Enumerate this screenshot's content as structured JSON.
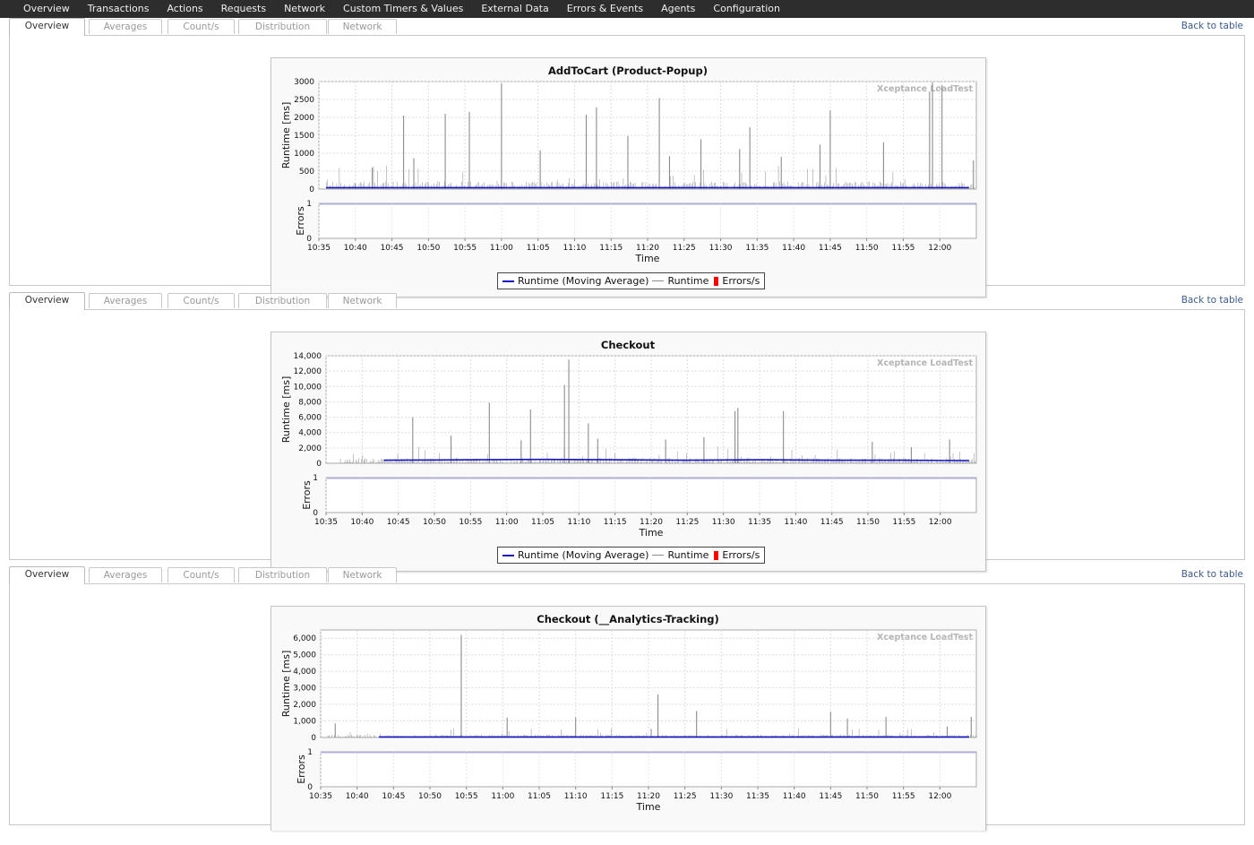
{
  "topnav": {
    "items": [
      "Overview",
      "Transactions",
      "Actions",
      "Requests",
      "Network",
      "Custom Timers & Values",
      "External Data",
      "Errors & Events",
      "Agents",
      "Configuration"
    ]
  },
  "tabs": [
    "Overview",
    "Averages",
    "Count/s",
    "Distribution",
    "Network"
  ],
  "back_link": "Back to table",
  "watermark": "Xceptance LoadTest",
  "colors": {
    "moving_average": "#1515c8",
    "runtime": "#8c8c8c",
    "errors": "#ff0000",
    "nav_background": "#2d2d2d",
    "link": "#3a5a8c"
  },
  "legend": {
    "moving_average": "Runtime (Moving Average)",
    "runtime": "Runtime",
    "errors": "Errors/s"
  },
  "charts": [
    {
      "title": "AddToCart (Product-Popup)",
      "ylabel": "Runtime [ms]",
      "ylabel2": "Errors",
      "xlabel": "Time",
      "yticks": [
        "0",
        "500",
        "1000",
        "1500",
        "2000",
        "2500",
        "3000"
      ],
      "errors_ticks": [
        "0",
        "1"
      ],
      "xticks": [
        "10:35",
        "10:40",
        "10:45",
        "10:50",
        "10:55",
        "11:00",
        "11:05",
        "11:10",
        "11:15",
        "11:20",
        "11:25",
        "11:30",
        "11:35",
        "11:40",
        "11:45",
        "11:50",
        "11:55",
        "12:00"
      ]
    },
    {
      "title": "Checkout",
      "ylabel": "Runtime [ms]",
      "ylabel2": "Errors",
      "xlabel": "Time",
      "yticks": [
        "0",
        "2,000",
        "4,000",
        "6,000",
        "8,000",
        "10,000",
        "12,000",
        "14,000"
      ],
      "errors_ticks": [
        "0",
        "1"
      ],
      "xticks": [
        "10:35",
        "10:40",
        "10:45",
        "10:50",
        "10:55",
        "11:00",
        "11:05",
        "11:10",
        "11:15",
        "11:20",
        "11:25",
        "11:30",
        "11:35",
        "11:40",
        "11:45",
        "11:50",
        "11:55",
        "12:00"
      ]
    },
    {
      "title": "Checkout (__Analytics-Tracking)",
      "ylabel": "Runtime [ms]",
      "ylabel2": "Errors",
      "xlabel": "Time",
      "yticks": [
        "0",
        "1,000",
        "2,000",
        "3,000",
        "4,000",
        "5,000",
        "6,000"
      ],
      "errors_ticks": [
        "0",
        "1"
      ],
      "xticks": [
        "10:35",
        "10:40",
        "10:45",
        "10:50",
        "10:55",
        "11:00",
        "11:05",
        "11:10",
        "11:15",
        "11:20",
        "11:25",
        "11:30",
        "11:35",
        "11:40",
        "11:45",
        "11:50",
        "11:55",
        "12:00"
      ]
    }
  ],
  "chart_data": [
    {
      "type": "line",
      "title": "AddToCart (Product-Popup)",
      "xlabel": "Time",
      "ylabel": "Runtime [ms]",
      "x_range": [
        "10:35",
        "12:05"
      ],
      "ylim": [
        0,
        3000
      ],
      "grid": true,
      "legend": "bottom-center",
      "series": [
        {
          "name": "Runtime (Moving Average)",
          "x": [
            "10:36",
            "10:45",
            "11:00",
            "11:15",
            "11:30",
            "11:45",
            "12:00",
            "12:04"
          ],
          "values": [
            40,
            40,
            40,
            40,
            40,
            40,
            40,
            40
          ]
        },
        {
          "name": "Runtime",
          "x": [
            "10:40",
            "10:42",
            "10:46",
            "10:48",
            "10:52",
            "10:55",
            "11:00",
            "11:05",
            "11:11",
            "11:13",
            "11:17",
            "11:21",
            "11:23",
            "11:27",
            "11:32",
            "11:34",
            "11:38",
            "11:43",
            "11:45",
            "11:52",
            "11:58",
            "11:59",
            "12:00",
            "12:04"
          ],
          "values": [
            160,
            600,
            2050,
            860,
            2100,
            2150,
            2950,
            1080,
            2080,
            2280,
            1480,
            2540,
            920,
            1390,
            1120,
            1720,
            900,
            1240,
            2200,
            1300,
            2720,
            2980,
            2900,
            800
          ]
        },
        {
          "name": "Errors/s",
          "x": [
            "10:35",
            "12:05"
          ],
          "values": [
            0,
            0
          ]
        }
      ]
    },
    {
      "type": "line",
      "title": "Checkout",
      "xlabel": "Time",
      "ylabel": "Runtime [ms]",
      "x_range": [
        "10:35",
        "12:05"
      ],
      "ylim": [
        0,
        14000
      ],
      "grid": true,
      "legend": "bottom-center",
      "series": [
        {
          "name": "Runtime (Moving Average)",
          "x": [
            "10:43",
            "10:55",
            "11:05",
            "11:15",
            "11:25",
            "11:35",
            "11:45",
            "11:55",
            "12:04"
          ],
          "values": [
            400,
            450,
            500,
            450,
            400,
            450,
            400,
            400,
            350
          ]
        },
        {
          "name": "Runtime",
          "x": [
            "10:47",
            "10:52",
            "10:57",
            "11:02",
            "11:03",
            "11:08",
            "11:08",
            "11:11",
            "11:12",
            "11:22",
            "11:27",
            "11:31",
            "11:32",
            "11:38",
            "11:50",
            "11:56",
            "12:01"
          ],
          "values": [
            6000,
            3600,
            7900,
            3000,
            7000,
            13500,
            10200,
            5200,
            3200,
            3100,
            3400,
            6800,
            7200,
            6800,
            2800,
            2100,
            3100
          ]
        },
        {
          "name": "Errors/s",
          "x": [
            "10:35",
            "12:05"
          ],
          "values": [
            0,
            0
          ]
        }
      ]
    },
    {
      "type": "line",
      "title": "Checkout (__Analytics-Tracking)",
      "xlabel": "Time",
      "ylabel": "Runtime [ms]",
      "x_range": [
        "10:35",
        "12:05"
      ],
      "ylim": [
        0,
        6500
      ],
      "grid": true,
      "legend": "bottom-center",
      "series": [
        {
          "name": "Runtime (Moving Average)",
          "x": [
            "10:43",
            "11:00",
            "11:20",
            "11:40",
            "12:04"
          ],
          "values": [
            30,
            30,
            30,
            30,
            30
          ]
        },
        {
          "name": "Runtime",
          "x": [
            "10:37",
            "10:54",
            "11:00",
            "11:10",
            "11:21",
            "11:26",
            "11:45",
            "11:47",
            "11:52",
            "12:01",
            "12:04"
          ],
          "values": [
            850,
            6200,
            1200,
            1200,
            2600,
            1600,
            1550,
            1150,
            1250,
            650,
            1250
          ]
        },
        {
          "name": "Errors/s",
          "x": [
            "10:35",
            "12:05"
          ],
          "values": [
            0,
            0
          ]
        }
      ]
    }
  ]
}
